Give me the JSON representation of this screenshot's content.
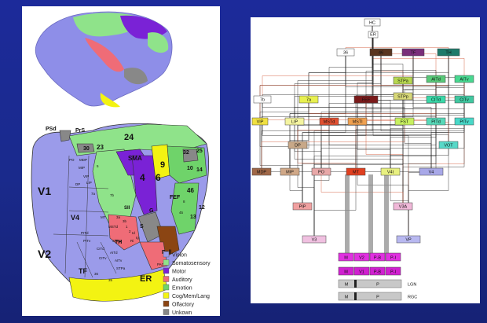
{
  "left": {
    "regions_large": [
      "V1",
      "V2",
      "V4",
      "TF",
      "ER",
      "24",
      "23",
      "SMA",
      "4",
      "6",
      "9",
      "46",
      "PSd",
      "PrS",
      "30",
      "25",
      "32",
      "10",
      "14",
      "12",
      "13",
      "FEF",
      "Pall",
      "G",
      "S",
      "TH",
      "SII"
    ],
    "regions_small": [
      "PO",
      "MDP",
      "MIP",
      "VIP",
      "DP",
      "LIP",
      "7a",
      "7b",
      "5",
      "3a",
      "3b",
      "1",
      "2",
      "PITd",
      "PITv",
      "CITd",
      "CITv",
      "AITd",
      "AITv",
      "STPp",
      "STPa",
      "MT",
      "MSTd",
      "PAC",
      "36",
      "35",
      "Id",
      "Ig",
      "45",
      "8",
      "Ri"
    ],
    "legend": [
      {
        "label": "Vision",
        "color": "#9b9bea"
      },
      {
        "label": "Somatosensory",
        "color": "#8fe38a"
      },
      {
        "label": "Motor",
        "color": "#7a22d6"
      },
      {
        "label": "Auditory",
        "color": "#ef6c77"
      },
      {
        "label": "Emotion",
        "color": "#6fd36a"
      },
      {
        "label": "Cog/Mem/Lang",
        "color": "#f3f312"
      },
      {
        "label": "Olfactory",
        "color": "#8b4513"
      },
      {
        "label": "Unkown",
        "color": "#888888"
      }
    ]
  },
  "right": {
    "boxes": [
      {
        "id": "HC",
        "label": "HC",
        "color": "#ffffff"
      },
      {
        "id": "ER",
        "label": "ER",
        "color": "#ffffff"
      },
      {
        "id": "36",
        "label": "36",
        "color": "#ffffff"
      },
      {
        "id": "46",
        "label": "46",
        "color": "#5a3520"
      },
      {
        "id": "TF",
        "label": "TF",
        "color": "#7a2f7a"
      },
      {
        "id": "TH",
        "label": "TH",
        "color": "#1f7a6a"
      },
      {
        "id": "STPa",
        "label": "STPa",
        "color": "#b8d850"
      },
      {
        "id": "AITd",
        "label": "AITd",
        "color": "#58c878"
      },
      {
        "id": "AITv",
        "label": "AITv",
        "color": "#48d890"
      },
      {
        "id": "7b",
        "label": "7b",
        "color": "#ffffff"
      },
      {
        "id": "7a",
        "label": "7a",
        "color": "#e8f050"
      },
      {
        "id": "FEF",
        "label": "FEF",
        "color": "#7a1a1a"
      },
      {
        "id": "STPp",
        "label": "STPp",
        "color": "#d8d878"
      },
      {
        "id": "CITd",
        "label": "CITd",
        "color": "#3ad8a8"
      },
      {
        "id": "CITv",
        "label": "CITv",
        "color": "#40c8a0"
      },
      {
        "id": "VIP",
        "label": "VIP",
        "color": "#f0e040"
      },
      {
        "id": "LIP",
        "label": "LIP",
        "color": "#f4f4a0"
      },
      {
        "id": "MSTd",
        "label": "MSTd",
        "color": "#e05030"
      },
      {
        "id": "MSTl",
        "label": "MSTl",
        "color": "#f0a050"
      },
      {
        "id": "FST",
        "label": "FST",
        "color": "#c8f060"
      },
      {
        "id": "PITd",
        "label": "PITd",
        "color": "#58d8b8"
      },
      {
        "id": "PITv",
        "label": "PITv",
        "color": "#48d8c8"
      },
      {
        "id": "DP",
        "label": "DP",
        "color": "#c8a888"
      },
      {
        "id": "VOT",
        "label": "VOT",
        "color": "#58d8c8"
      },
      {
        "id": "MDP",
        "label": "MDP",
        "color": "#a06848"
      },
      {
        "id": "MIP",
        "label": "MIP",
        "color": "#d0a888"
      },
      {
        "id": "PO",
        "label": "PO",
        "color": "#e8a8a8"
      },
      {
        "id": "MT",
        "label": "MT",
        "color": "#e04020"
      },
      {
        "id": "V4t",
        "label": "V4t",
        "color": "#e8f080"
      },
      {
        "id": "V4",
        "label": "V4",
        "color": "#a8a8e8"
      },
      {
        "id": "PIP",
        "label": "PIP",
        "color": "#f0a0a0"
      },
      {
        "id": "V3A",
        "label": "V3A",
        "color": "#f0b8d8"
      },
      {
        "id": "V3",
        "label": "V3",
        "color": "#f0c0e0"
      },
      {
        "id": "VP",
        "label": "VP",
        "color": "#b8b8f0"
      }
    ],
    "stack": [
      {
        "label": "M",
        "color": "#e030e0"
      },
      {
        "label": "V2",
        "color": "#e030e0"
      },
      {
        "label": "P-B",
        "color": "#e030e0"
      },
      {
        "label": "P-I",
        "color": "#e030e0"
      },
      {
        "label": "M",
        "color": "#d020d0"
      },
      {
        "label": "V1",
        "color": "#d020d0"
      },
      {
        "label": "P-B",
        "color": "#d020d0"
      },
      {
        "label": "P-I",
        "color": "#d020d0"
      }
    ],
    "lgn": {
      "m": "M",
      "p": "P",
      "label": "LGN"
    },
    "rgc": {
      "m": "M",
      "p": "P",
      "label": "RGC"
    }
  }
}
